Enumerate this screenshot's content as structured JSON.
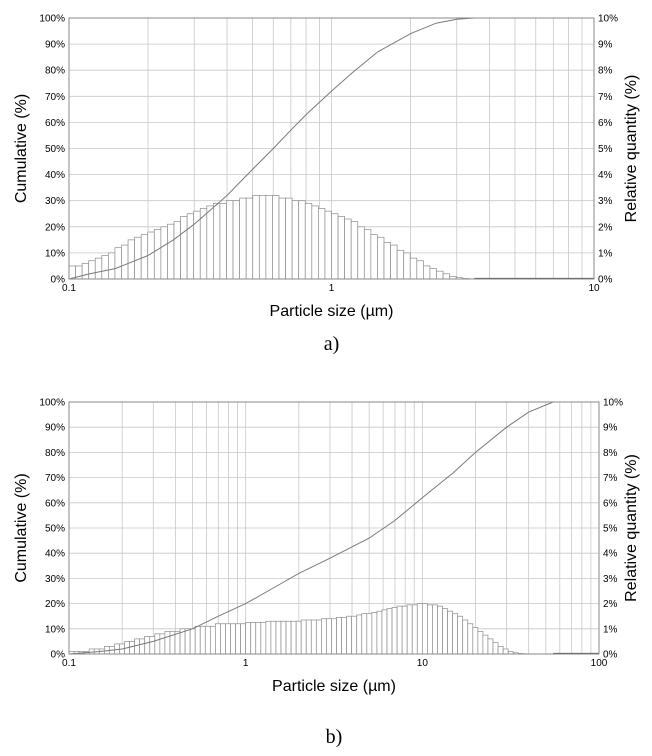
{
  "charts": [
    {
      "caption": "a)",
      "chart_data": {
        "type": "bar+line",
        "xscale": "log",
        "xlim": [
          0.1,
          10
        ],
        "x_ticks": [
          "0.1",
          "1",
          "10"
        ],
        "xlabel": "Particle  size (µm)",
        "ylabel_left": "Cumulative (%)",
        "ylabel_right": "Relative quantity (%)",
        "ylim_left": [
          0,
          100
        ],
        "ylim_right": [
          0,
          10
        ],
        "y_ticks_left": [
          "0%",
          "10%",
          "20%",
          "30%",
          "40%",
          "50%",
          "60%",
          "70%",
          "80%",
          "90%",
          "100%"
        ],
        "y_ticks_right": [
          "0%",
          "1%",
          "2%",
          "3%",
          "4%",
          "5%",
          "6%",
          "7%",
          "8%",
          "9%",
          "10%"
        ],
        "grid": true,
        "histogram": {
          "x_start": 0.1,
          "x_end": 3.5,
          "bins_per_decade": 40,
          "values": [
            0.5,
            0.5,
            0.6,
            0.7,
            0.8,
            0.9,
            1.0,
            1.2,
            1.3,
            1.5,
            1.6,
            1.7,
            1.8,
            1.9,
            2.0,
            2.1,
            2.2,
            2.4,
            2.5,
            2.6,
            2.7,
            2.8,
            2.9,
            2.9,
            3.0,
            3.0,
            3.1,
            3.1,
            3.2,
            3.2,
            3.2,
            3.2,
            3.1,
            3.1,
            3.0,
            3.0,
            2.9,
            2.8,
            2.7,
            2.6,
            2.5,
            2.4,
            2.3,
            2.2,
            2.0,
            1.9,
            1.7,
            1.6,
            1.4,
            1.3,
            1.1,
            1.0,
            0.8,
            0.7,
            0.5,
            0.4,
            0.3,
            0.2,
            0.1,
            0.05,
            0.02
          ]
        },
        "zero_line_to": 10,
        "cumulative": {
          "x": [
            0.1,
            0.12,
            0.15,
            0.2,
            0.25,
            0.3,
            0.4,
            0.5,
            0.6,
            0.7,
            0.8,
            1.0,
            1.2,
            1.5,
            2.0,
            2.5,
            3.0,
            3.5,
            10
          ],
          "y": [
            0,
            2,
            4,
            9,
            15,
            21,
            32,
            42,
            50,
            57,
            63,
            72,
            79,
            87,
            94,
            98,
            99.5,
            100,
            100
          ]
        }
      }
    },
    {
      "caption": "b)",
      "chart_data": {
        "type": "bar+line",
        "xscale": "log",
        "xlim": [
          0.1,
          100
        ],
        "x_ticks": [
          "0.1",
          "1",
          "10",
          "100"
        ],
        "xlabel": "Particle  size (µm)",
        "ylabel_left": "Cumulative (%)",
        "ylabel_right": "Relative quantity (%)",
        "ylim_left": [
          0,
          100
        ],
        "ylim_right": [
          0,
          10
        ],
        "y_ticks_left": [
          "0%",
          "10%",
          "20%",
          "30%",
          "40%",
          "50%",
          "60%",
          "70%",
          "80%",
          "90%",
          "100%"
        ],
        "y_ticks_right": [
          "0%",
          "1%",
          "2%",
          "3%",
          "4%",
          "5%",
          "6%",
          "7%",
          "8%",
          "9%",
          "10%"
        ],
        "grid": true,
        "histogram": {
          "x_start": 0.1,
          "x_end": 55,
          "bins_per_decade": 35,
          "values": [
            0.1,
            0.1,
            0.1,
            0.1,
            0.2,
            0.2,
            0.2,
            0.3,
            0.3,
            0.4,
            0.4,
            0.5,
            0.5,
            0.6,
            0.6,
            0.7,
            0.7,
            0.8,
            0.8,
            0.9,
            0.9,
            0.9,
            1.0,
            1.0,
            1.0,
            1.1,
            1.1,
            1.1,
            1.1,
            1.2,
            1.2,
            1.2,
            1.2,
            1.2,
            1.2,
            1.25,
            1.25,
            1.25,
            1.25,
            1.3,
            1.3,
            1.3,
            1.3,
            1.3,
            1.3,
            1.3,
            1.35,
            1.35,
            1.35,
            1.35,
            1.4,
            1.4,
            1.4,
            1.45,
            1.45,
            1.5,
            1.5,
            1.55,
            1.6,
            1.6,
            1.65,
            1.7,
            1.75,
            1.8,
            1.85,
            1.9,
            1.9,
            1.95,
            1.95,
            2.0,
            2.0,
            1.95,
            1.95,
            1.9,
            1.8,
            1.7,
            1.6,
            1.5,
            1.35,
            1.2,
            1.05,
            0.9,
            0.75,
            0.6,
            0.45,
            0.3,
            0.2,
            0.1,
            0.05,
            0.02,
            0.01
          ]
        },
        "zero_line_to": 100,
        "cumulative": {
          "x": [
            0.1,
            0.15,
            0.2,
            0.3,
            0.5,
            0.7,
            1.0,
            1.5,
            2.0,
            3.0,
            5.0,
            7.0,
            10,
            15,
            20,
            30,
            40,
            55,
            100
          ],
          "y": [
            0,
            1,
            2,
            5,
            10,
            15,
            20,
            27,
            32,
            38,
            46,
            53,
            62,
            72,
            80,
            90,
            96,
            100,
            100
          ]
        }
      }
    }
  ]
}
